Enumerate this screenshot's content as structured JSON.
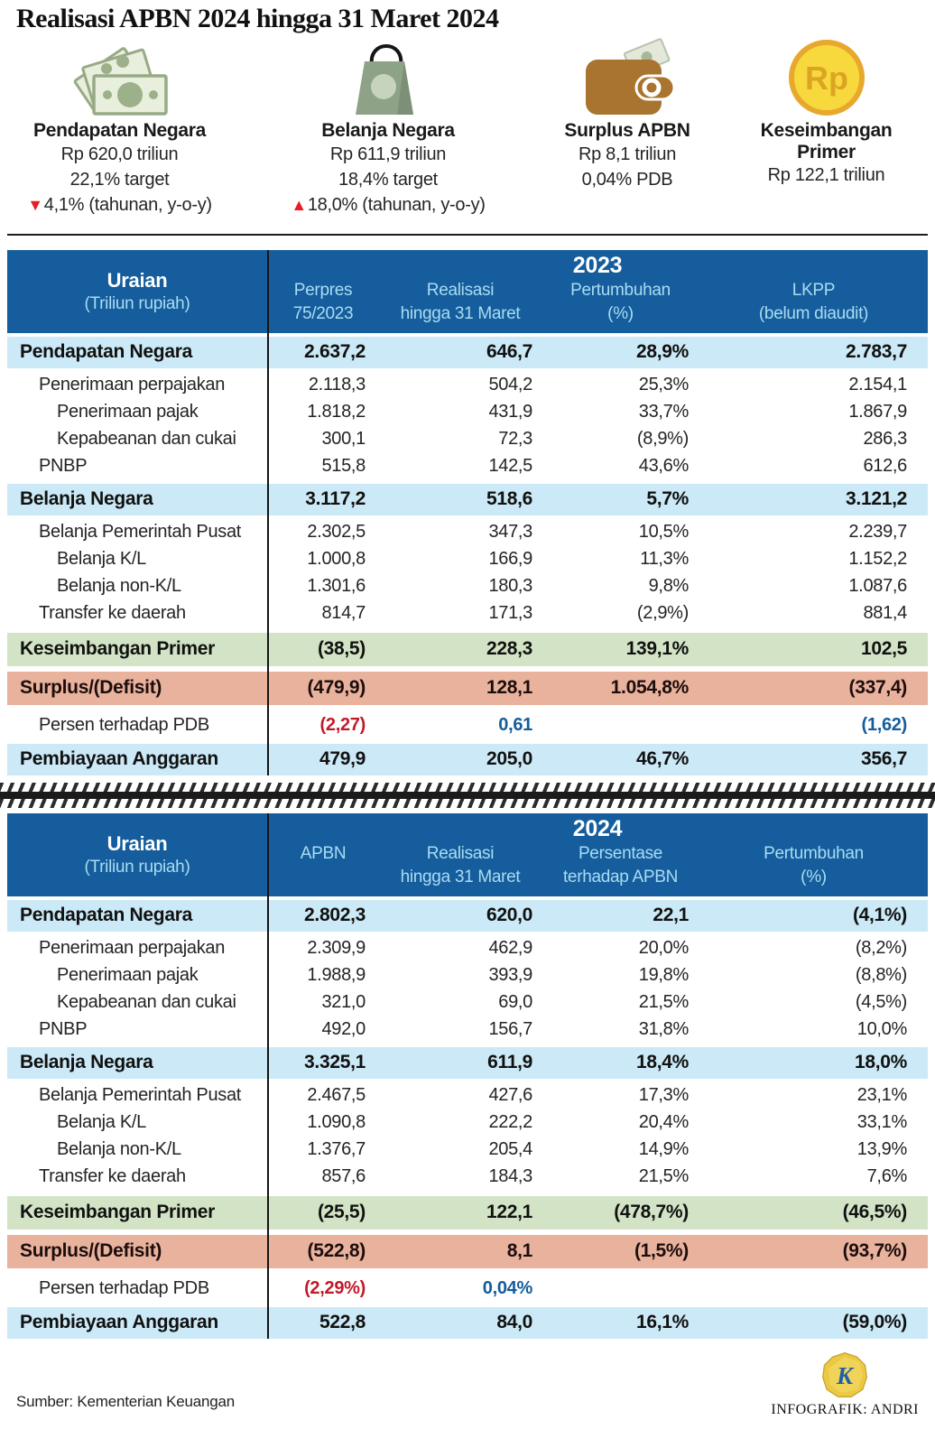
{
  "title": "Realisasi APBN 2024 hingga 31 Maret 2024",
  "cards": [
    {
      "icon": "banknotes-icon",
      "title": "Pendapatan Negara",
      "lines": [
        "Rp 620,0 triliun",
        "22,1% target"
      ],
      "trend": {
        "direction": "down",
        "text": "4,1% (tahunan, y-o-y)"
      }
    },
    {
      "icon": "shopping-bag-icon",
      "title": "Belanja Negara",
      "lines": [
        "Rp 611,9 triliun",
        "18,4% target"
      ],
      "trend": {
        "direction": "up",
        "text": "18,0% (tahunan, y-o-y)"
      }
    },
    {
      "icon": "wallet-icon",
      "title": "Surplus APBN",
      "lines": [
        "Rp 8,1 triliun",
        "0,04% PDB"
      ]
    },
    {
      "icon": "coin-rp-icon",
      "title": "Keseimbangan Primer",
      "lines": [
        "Rp 122,1 triliun"
      ]
    }
  ],
  "chart_data": [
    {
      "type": "table",
      "year": "2023",
      "uraian": {
        "label": "Uraian",
        "sub": "(Triliun rupiah)"
      },
      "columns": [
        {
          "l1": "Perpres",
          "l2": "75/2023"
        },
        {
          "l1": "Realisasi",
          "l2": "hingga 31 Maret"
        },
        {
          "l1": "Pertumbuhan",
          "l2": "(%)"
        },
        {
          "l1": "LKPP",
          "l2": "(belum diaudit)"
        }
      ],
      "rows": [
        {
          "label": "Pendapatan Negara",
          "indent": 0,
          "style": "section",
          "values": [
            "2.637,2",
            "646,7",
            "28,9%",
            "2.783,7"
          ]
        },
        {
          "label": "Penerimaan perpajakan",
          "indent": 1,
          "style": "sub",
          "values": [
            "2.118,3",
            "504,2",
            "25,3%",
            "2.154,1"
          ]
        },
        {
          "label": "Penerimaan pajak",
          "indent": 2,
          "style": "sub",
          "values": [
            "1.818,2",
            "431,9",
            "33,7%",
            "1.867,9"
          ]
        },
        {
          "label": "Kepabeanan dan cukai",
          "indent": 2,
          "style": "sub",
          "values": [
            "300,1",
            "72,3",
            "(8,9%)",
            "286,3"
          ]
        },
        {
          "label": "PNBP",
          "indent": 1,
          "style": "sub",
          "values": [
            "515,8",
            "142,5",
            "43,6%",
            "612,6"
          ]
        },
        {
          "label": "Belanja Negara",
          "indent": 0,
          "style": "section",
          "values": [
            "3.117,2",
            "518,6",
            "5,7%",
            "3.121,2"
          ]
        },
        {
          "label": "Belanja Pemerintah Pusat",
          "indent": 1,
          "style": "sub",
          "values": [
            "2.302,5",
            "347,3",
            "10,5%",
            "2.239,7"
          ]
        },
        {
          "label": "Belanja K/L",
          "indent": 2,
          "style": "sub",
          "values": [
            "1.000,8",
            "166,9",
            "11,3%",
            "1.152,2"
          ]
        },
        {
          "label": "Belanja non-K/L",
          "indent": 2,
          "style": "sub",
          "values": [
            "1.301,6",
            "180,3",
            "9,8%",
            "1.087,6"
          ]
        },
        {
          "label": "Transfer ke daerah",
          "indent": 1,
          "style": "sub",
          "values": [
            "814,7",
            "171,3",
            "(2,9%)",
            "881,4"
          ]
        },
        {
          "label": "Keseimbangan Primer",
          "indent": 0,
          "style": "primer",
          "values": [
            "(38,5)",
            "228,3",
            "139,1%",
            "102,5"
          ]
        },
        {
          "label": "Surplus/(Defisit)",
          "indent": 0,
          "style": "deficit",
          "values": [
            "(479,9)",
            "128,1",
            "1.054,8%",
            "(337,4)"
          ]
        },
        {
          "label": "Persen terhadap PDB",
          "indent": 1,
          "style": "pdb",
          "values": [
            "(2,27)",
            "0,61",
            "",
            "(1,62)"
          ],
          "colors": [
            "red",
            "blue",
            "",
            "blue"
          ]
        },
        {
          "label": "Pembiayaan Anggaran",
          "indent": 0,
          "style": "financing",
          "values": [
            "479,9",
            "205,0",
            "46,7%",
            "356,7"
          ]
        }
      ]
    },
    {
      "type": "table",
      "year": "2024",
      "uraian": {
        "label": "Uraian",
        "sub": "(Triliun rupiah)"
      },
      "columns": [
        {
          "l1": "APBN",
          "l2": ""
        },
        {
          "l1": "Realisasi",
          "l2": "hingga 31 Maret"
        },
        {
          "l1": "Persentase",
          "l2": "terhadap APBN"
        },
        {
          "l1": "Pertumbuhan",
          "l2": "(%)"
        }
      ],
      "rows": [
        {
          "label": "Pendapatan Negara",
          "indent": 0,
          "style": "section",
          "values": [
            "2.802,3",
            "620,0",
            "22,1",
            "(4,1%)"
          ]
        },
        {
          "label": "Penerimaan perpajakan",
          "indent": 1,
          "style": "sub",
          "values": [
            "2.309,9",
            "462,9",
            "20,0%",
            "(8,2%)"
          ]
        },
        {
          "label": "Penerimaan pajak",
          "indent": 2,
          "style": "sub",
          "values": [
            "1.988,9",
            "393,9",
            "19,8%",
            "(8,8%)"
          ]
        },
        {
          "label": "Kepabeanan dan cukai",
          "indent": 2,
          "style": "sub",
          "values": [
            "321,0",
            "69,0",
            "21,5%",
            "(4,5%)"
          ]
        },
        {
          "label": "PNBP",
          "indent": 1,
          "style": "sub",
          "values": [
            "492,0",
            "156,7",
            "31,8%",
            "10,0%"
          ]
        },
        {
          "label": "Belanja Negara",
          "indent": 0,
          "style": "section",
          "values": [
            "3.325,1",
            "611,9",
            "18,4%",
            "18,0%"
          ]
        },
        {
          "label": "Belanja Pemerintah Pusat",
          "indent": 1,
          "style": "sub",
          "values": [
            "2.467,5",
            "427,6",
            "17,3%",
            "23,1%"
          ]
        },
        {
          "label": "Belanja K/L",
          "indent": 2,
          "style": "sub",
          "values": [
            "1.090,8",
            "222,2",
            "20,4%",
            "33,1%"
          ]
        },
        {
          "label": "Belanja non-K/L",
          "indent": 2,
          "style": "sub",
          "values": [
            "1.376,7",
            "205,4",
            "14,9%",
            "13,9%"
          ]
        },
        {
          "label": "Transfer ke daerah",
          "indent": 1,
          "style": "sub",
          "values": [
            "857,6",
            "184,3",
            "21,5%",
            "7,6%"
          ]
        },
        {
          "label": "Keseimbangan Primer",
          "indent": 0,
          "style": "primer",
          "values": [
            "(25,5)",
            "122,1",
            "(478,7%)",
            "(46,5%)"
          ]
        },
        {
          "label": "Surplus/(Defisit)",
          "indent": 0,
          "style": "deficit",
          "values": [
            "(522,8)",
            "8,1",
            "(1,5%)",
            "(93,7%)"
          ]
        },
        {
          "label": "Persen terhadap PDB",
          "indent": 1,
          "style": "pdb",
          "values": [
            "(2,29%)",
            "0,04%",
            "",
            ""
          ],
          "colors": [
            "red",
            "blue",
            "",
            ""
          ]
        },
        {
          "label": "Pembiayaan Anggaran",
          "indent": 0,
          "style": "financing",
          "values": [
            "522,8",
            "84,0",
            "16,1%",
            "(59,0%)"
          ]
        }
      ]
    }
  ],
  "colors": {
    "header_blue": "#155d9c",
    "header_text": "#a9dcf2",
    "row_blue": "#cbe9f6",
    "row_green": "#d2e4c5",
    "row_salmon": "#e9b29d",
    "negative_red": "#c11a2b",
    "value_blue": "#135d9c",
    "trend_red": "#e81c26"
  },
  "footer": {
    "source": "Sumber: Kementerian Keuangan",
    "credit": "INFOGRAFIK: ANDRI",
    "badge_letter": "K"
  }
}
